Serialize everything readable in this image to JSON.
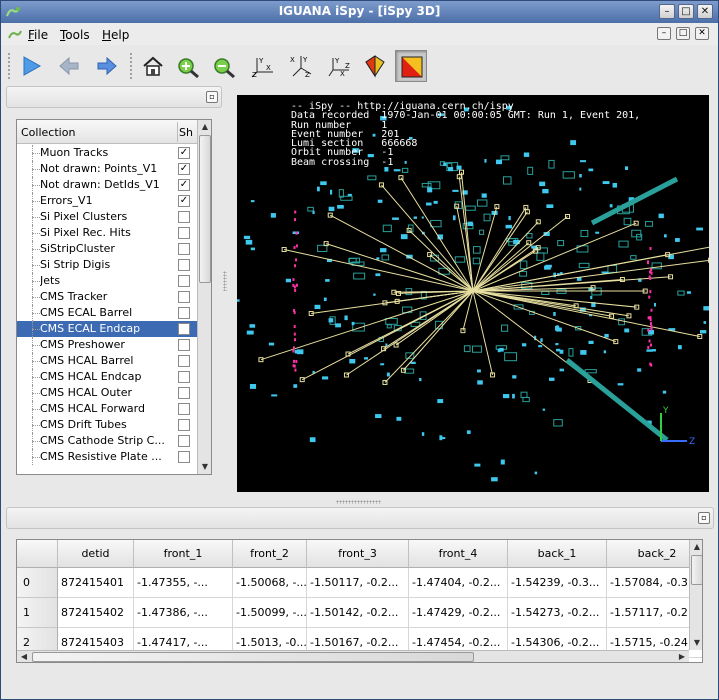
{
  "window": {
    "title": "IGUANA iSpy - [iSpy 3D]",
    "controls": {
      "minimize": "–",
      "maximize": "□",
      "close": "✕"
    }
  },
  "menubar": {
    "items": [
      {
        "label": "File",
        "mnemonic": "F"
      },
      {
        "label": "Tools",
        "mnemonic": "T"
      },
      {
        "label": "Help",
        "mnemonic": "H"
      }
    ]
  },
  "toolbar": {
    "icons": [
      "play-icon",
      "back-arrow-icon",
      "forward-arrow-icon",
      "home-icon",
      "zoom-in-icon",
      "zoom-out-icon",
      "axes-yz-view-icon",
      "axes-xy-view-icon",
      "axes-zx-view-icon",
      "perspective-cube-icon",
      "orthographic-view-icon"
    ]
  },
  "tree": {
    "columns": [
      "Collection",
      "Sh"
    ],
    "rows": [
      {
        "label": "Muon Tracks",
        "checked": true
      },
      {
        "label": "Not drawn: Points_V1",
        "checked": true
      },
      {
        "label": "Not drawn: DetIds_V1",
        "checked": true
      },
      {
        "label": "Errors_V1",
        "checked": true
      },
      {
        "label": "Si Pixel Clusters",
        "checked": false
      },
      {
        "label": "Si Pixel Rec. Hits",
        "checked": false
      },
      {
        "label": "SiStripCluster",
        "checked": false
      },
      {
        "label": "Si Strip Digis",
        "checked": false
      },
      {
        "label": "Jets",
        "checked": false
      },
      {
        "label": "CMS Tracker",
        "checked": false
      },
      {
        "label": "CMS ECAL Barrel",
        "checked": false
      },
      {
        "label": "CMS ECAL Endcap",
        "checked": false,
        "selected": true
      },
      {
        "label": "CMS Preshower",
        "checked": false
      },
      {
        "label": "CMS HCAL Barrel",
        "checked": false
      },
      {
        "label": "CMS HCAL Endcap",
        "checked": false
      },
      {
        "label": "CMS HCAL Outer",
        "checked": false
      },
      {
        "label": "CMS HCAL Forward",
        "checked": false
      },
      {
        "label": "CMS Drift Tubes",
        "checked": false
      },
      {
        "label": "CMS Cathode Strip C...",
        "checked": false
      },
      {
        "label": "CMS Resistive Plate ...",
        "checked": false
      }
    ]
  },
  "viewer": {
    "overlay": {
      "line1": "-- iSpy -- http://iguana.cern.ch/ispy",
      "line2": "Data recorded  1970-Jan-01 00:00:05 GMT: Run 1, Event 201,",
      "line3": "Run number     1",
      "line4": "Event number   201",
      "line5": "Lumi section   666668",
      "line6": "Orbit number   -1",
      "line7": "Beam crossing  -1"
    },
    "colors": {
      "background": "#000000",
      "tracks": "#e8e0a0",
      "hits": "#3fc8ee",
      "calo": "#2aa09a",
      "highlight": "#ff2fa8"
    }
  },
  "table": {
    "columns": [
      "detid",
      "front_1",
      "front_2",
      "front_3",
      "front_4",
      "back_1",
      "back_2"
    ],
    "rows": [
      {
        "index": "0",
        "cells": [
          "872415401",
          "-1.47355, -...",
          "-1.50068, -...",
          "-1.50117, -0.2...",
          "-1.47404, -0.2...",
          "-1.54239, -0.3...",
          "-1.57084, -0.3..."
        ]
      },
      {
        "index": "1",
        "cells": [
          "872415402",
          "-1.47386, -...",
          "-1.50099, -...",
          "-1.50142, -0.2...",
          "-1.47429, -0.2...",
          "-1.54273, -0.2...",
          "-1.57117, -0.2..."
        ]
      },
      {
        "index": "2",
        "cells": [
          "872415403",
          "-1.47417, -...",
          "-1.5013, -0...",
          "-1.50167, -0.2...",
          "-1.47454, -0.2...",
          "-1.54306, -0.2...",
          "-1.5715, -0.24..."
        ]
      }
    ]
  }
}
